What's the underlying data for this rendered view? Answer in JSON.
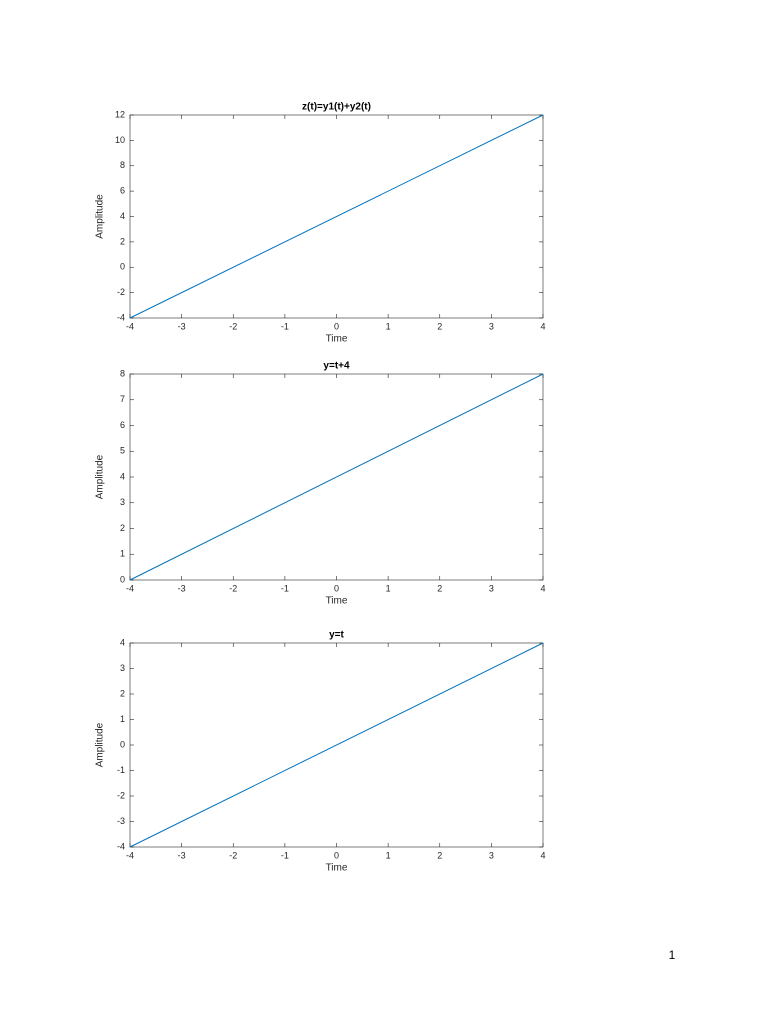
{
  "chart_data": [
    {
      "type": "line",
      "title": "z(t)=y1(t)+y2(t)",
      "x_label": "Time",
      "y_label": "Amplitude",
      "x": [
        -4,
        4
      ],
      "values": [
        -4,
        12
      ],
      "color": "#0072bd",
      "xlim": [
        -4,
        4
      ],
      "xticks": [
        -4,
        -3,
        -2,
        -1,
        0,
        1,
        2,
        3,
        4
      ],
      "ylim": [
        -4,
        12
      ],
      "yticks": [
        -4,
        -2,
        0,
        2,
        4,
        6,
        8,
        10,
        12
      ]
    },
    {
      "type": "line",
      "title": "y=t+4",
      "x_label": "Time",
      "y_label": "Amplitude",
      "x": [
        -4,
        4
      ],
      "values": [
        0,
        8
      ],
      "color": "#0072bd",
      "xlim": [
        -4,
        4
      ],
      "xticks": [
        -4,
        -3,
        -2,
        -1,
        0,
        1,
        2,
        3,
        4
      ],
      "ylim": [
        0,
        8
      ],
      "yticks": [
        0,
        1,
        2,
        3,
        4,
        5,
        6,
        7,
        8
      ]
    },
    {
      "type": "line",
      "title": "y=t",
      "x_label": "Time",
      "y_label": "Amplitude",
      "x": [
        -4,
        4
      ],
      "values": [
        -4,
        4
      ],
      "color": "#0072bd",
      "xlim": [
        -4,
        4
      ],
      "xticks": [
        -4,
        -3,
        -2,
        -1,
        0,
        1,
        2,
        3,
        4
      ],
      "ylim": [
        -4,
        4
      ],
      "yticks": [
        -4,
        -3,
        -2,
        -1,
        0,
        1,
        2,
        3,
        4
      ]
    }
  ],
  "page_number": "1"
}
